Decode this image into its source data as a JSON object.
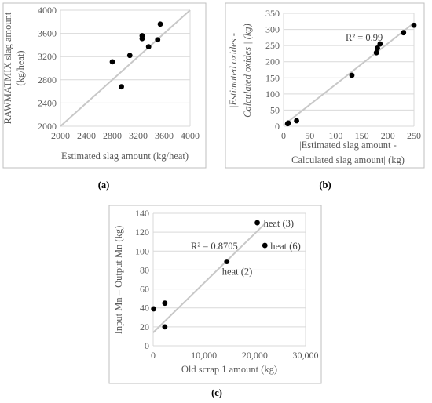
{
  "chart_data": [
    {
      "type": "scatter",
      "title": "",
      "xlabel": "Estimated slag amount (kg/heat)",
      "ylabel_lines": [
        "RAWMATMIX slag amount",
        "(kg/heat)"
      ],
      "xlim": [
        2000,
        4000
      ],
      "ylim": [
        2000,
        4000
      ],
      "x_ticks": [
        2000,
        2400,
        2800,
        3200,
        3600,
        4000
      ],
      "y_ticks": [
        2000,
        2400,
        2800,
        3200,
        3600,
        4000
      ],
      "x_tick_labels": [
        "2000",
        "2400",
        "2800",
        "3200",
        "3600",
        "4000"
      ],
      "y_tick_labels": [
        "2000",
        "2400",
        "2800",
        "3200",
        "3600",
        "4000"
      ],
      "grid": "horizontal",
      "trendline": {
        "type": "identity",
        "from": [
          2000,
          2000
        ],
        "to": [
          4000,
          4000
        ]
      },
      "points": [
        {
          "x": 2800,
          "y": 3110
        },
        {
          "x": 2940,
          "y": 2680
        },
        {
          "x": 3070,
          "y": 3220
        },
        {
          "x": 3260,
          "y": 3560
        },
        {
          "x": 3260,
          "y": 3510
        },
        {
          "x": 3360,
          "y": 3370
        },
        {
          "x": 3500,
          "y": 3490
        },
        {
          "x": 3540,
          "y": 3760
        }
      ],
      "caption": "(a)"
    },
    {
      "type": "scatter",
      "title": "",
      "xlabel_lines": [
        "|Estimated slag amount -",
        "Calculated slag amount| (kg)"
      ],
      "ylabel_lines": [
        "|Estimated oxides -",
        "Calculated oxides | (kg)"
      ],
      "xlim": [
        0,
        250
      ],
      "ylim": [
        0,
        350
      ],
      "x_ticks": [
        0,
        50,
        100,
        150,
        200,
        250
      ],
      "y_ticks": [
        0,
        50,
        100,
        150,
        200,
        250,
        300,
        350
      ],
      "x_tick_labels": [
        "0",
        "50",
        "100",
        "150",
        "200",
        "250"
      ],
      "y_tick_labels": [
        "0",
        "50",
        "100",
        "150",
        "200",
        "250",
        "300",
        "350"
      ],
      "grid": "horizontal",
      "trendline": {
        "type": "linear",
        "from": [
          0,
          3
        ],
        "to": [
          250,
          320
        ]
      },
      "annotation": "R² = 0.99",
      "points": [
        {
          "x": 8,
          "y": 8
        },
        {
          "x": 9,
          "y": 10
        },
        {
          "x": 25,
          "y": 17
        },
        {
          "x": 131,
          "y": 158
        },
        {
          "x": 178,
          "y": 228
        },
        {
          "x": 180,
          "y": 242
        },
        {
          "x": 185,
          "y": 255
        },
        {
          "x": 230,
          "y": 290
        },
        {
          "x": 250,
          "y": 313
        }
      ],
      "caption": "(b)"
    },
    {
      "type": "scatter",
      "title": "",
      "xlabel": "Old scrap 1 amount (kg)",
      "ylabel": "Input Mn – Output Mn (kg)",
      "xlim": [
        0,
        30000
      ],
      "ylim": [
        0,
        140
      ],
      "x_ticks": [
        0,
        10000,
        20000,
        30000
      ],
      "y_ticks": [
        0,
        20,
        40,
        60,
        80,
        100,
        120,
        140
      ],
      "x_tick_labels": [
        "0",
        "10,000",
        "20,000",
        "30,000"
      ],
      "y_tick_labels": [
        "0",
        "20",
        "40",
        "60",
        "80",
        "100",
        "120",
        "140"
      ],
      "grid": "horizontal",
      "trendline": {
        "type": "linear",
        "from": [
          0,
          14
        ],
        "to": [
          22200,
          130
        ]
      },
      "annotation": "R² = 0.8705",
      "points": [
        {
          "x": 100,
          "y": 39,
          "label": ""
        },
        {
          "x": 2300,
          "y": 45,
          "label": ""
        },
        {
          "x": 2300,
          "y": 20,
          "label": ""
        },
        {
          "x": 14500,
          "y": 89,
          "label": "heat (2)"
        },
        {
          "x": 20500,
          "y": 130,
          "label": "heat (3)"
        },
        {
          "x": 22000,
          "y": 106,
          "label": "heat (6)"
        }
      ],
      "caption": "(c)"
    }
  ]
}
